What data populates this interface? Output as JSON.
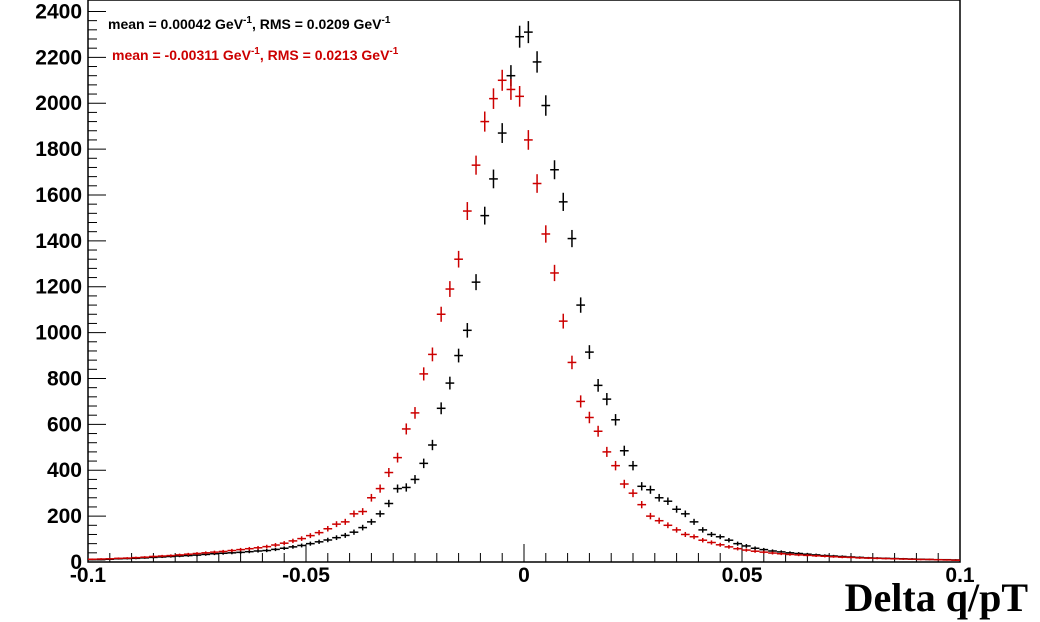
{
  "chart_data": {
    "type": "scatter",
    "title": "",
    "xlabel": "Delta q/pT",
    "ylabel": "",
    "xlim": [
      -0.1,
      0.1
    ],
    "ylim": [
      0,
      2450
    ],
    "grid": false,
    "x_ticks": [
      "-0.1",
      "-0.05",
      "0",
      "0.05",
      "0.1"
    ],
    "y_ticks": [
      "0",
      "200",
      "400",
      "600",
      "800",
      "1000",
      "1200",
      "1400",
      "1600",
      "1800",
      "2000",
      "2200",
      "2400"
    ],
    "annotations": [
      {
        "text_pre": "mean = 0.00042 GeV",
        "sup1": "-1",
        "text_mid": ", RMS = 0.0209 GeV",
        "sup2": "-1",
        "color": "#000000"
      },
      {
        "text_pre": "mean = -0.00311 GeV",
        "sup1": "-1",
        "text_mid": ", RMS = 0.0213 GeV",
        "sup2": "-1",
        "color": "#cc0000"
      }
    ],
    "series": [
      {
        "color": "#000000",
        "x": [
          -0.099,
          -0.097,
          -0.095,
          -0.093,
          -0.091,
          -0.089,
          -0.087,
          -0.085,
          -0.083,
          -0.081,
          -0.079,
          -0.077,
          -0.075,
          -0.073,
          -0.071,
          -0.069,
          -0.067,
          -0.065,
          -0.063,
          -0.061,
          -0.059,
          -0.057,
          -0.055,
          -0.053,
          -0.051,
          -0.049,
          -0.047,
          -0.045,
          -0.043,
          -0.041,
          -0.039,
          -0.037,
          -0.035,
          -0.033,
          -0.031,
          -0.029,
          -0.027,
          -0.025,
          -0.023,
          -0.021,
          -0.019,
          -0.017,
          -0.015,
          -0.013,
          -0.011,
          -0.009,
          -0.007,
          -0.005,
          -0.003,
          -0.001,
          0.001,
          0.003,
          0.005,
          0.007,
          0.009,
          0.011,
          0.013,
          0.015,
          0.017,
          0.019,
          0.021,
          0.023,
          0.025,
          0.027,
          0.029,
          0.031,
          0.033,
          0.035,
          0.037,
          0.039,
          0.041,
          0.043,
          0.045,
          0.047,
          0.049,
          0.051,
          0.053,
          0.055,
          0.057,
          0.059,
          0.061,
          0.063,
          0.065,
          0.067,
          0.069,
          0.071,
          0.073,
          0.075,
          0.077,
          0.079,
          0.081,
          0.083,
          0.085,
          0.087,
          0.089,
          0.091,
          0.093,
          0.095,
          0.097,
          0.099
        ],
        "y": [
          10,
          10,
          12,
          14,
          15,
          16,
          18,
          20,
          22,
          24,
          26,
          28,
          30,
          33,
          36,
          38,
          40,
          42,
          45,
          48,
          50,
          55,
          60,
          66,
          72,
          80,
          88,
          96,
          106,
          116,
          130,
          150,
          175,
          210,
          255,
          320,
          325,
          360,
          430,
          510,
          670,
          780,
          900,
          1010,
          1220,
          1510,
          1670,
          1870,
          2120,
          2290,
          2310,
          2180,
          1990,
          1710,
          1570,
          1410,
          1120,
          915,
          770,
          710,
          620,
          485,
          420,
          330,
          315,
          280,
          265,
          230,
          210,
          175,
          140,
          120,
          110,
          95,
          80,
          70,
          60,
          54,
          48,
          44,
          40,
          37,
          34,
          31,
          28,
          26,
          24,
          22,
          20,
          18,
          17,
          16,
          15,
          14,
          13,
          12,
          11,
          10,
          10,
          9
        ]
      },
      {
        "color": "#cc0000",
        "x": [
          -0.099,
          -0.097,
          -0.095,
          -0.093,
          -0.091,
          -0.089,
          -0.087,
          -0.085,
          -0.083,
          -0.081,
          -0.079,
          -0.077,
          -0.075,
          -0.073,
          -0.071,
          -0.069,
          -0.067,
          -0.065,
          -0.063,
          -0.061,
          -0.059,
          -0.057,
          -0.055,
          -0.053,
          -0.051,
          -0.049,
          -0.047,
          -0.045,
          -0.043,
          -0.041,
          -0.039,
          -0.037,
          -0.035,
          -0.033,
          -0.031,
          -0.029,
          -0.027,
          -0.025,
          -0.023,
          -0.021,
          -0.019,
          -0.017,
          -0.015,
          -0.013,
          -0.011,
          -0.009,
          -0.007,
          -0.005,
          -0.003,
          -0.001,
          0.001,
          0.003,
          0.005,
          0.007,
          0.009,
          0.011,
          0.013,
          0.015,
          0.017,
          0.019,
          0.021,
          0.023,
          0.025,
          0.027,
          0.029,
          0.031,
          0.033,
          0.035,
          0.037,
          0.039,
          0.041,
          0.043,
          0.045,
          0.047,
          0.049,
          0.051,
          0.053,
          0.055,
          0.057,
          0.059,
          0.061,
          0.063,
          0.065,
          0.067,
          0.069,
          0.071,
          0.073,
          0.075,
          0.077,
          0.079,
          0.081,
          0.083,
          0.085,
          0.087,
          0.089,
          0.091,
          0.093,
          0.095,
          0.097,
          0.099
        ],
        "y": [
          12,
          13,
          14,
          16,
          17,
          19,
          21,
          24,
          26,
          28,
          31,
          34,
          37,
          40,
          43,
          46,
          50,
          54,
          58,
          62,
          67,
          74,
          82,
          92,
          102,
          115,
          128,
          145,
          165,
          175,
          210,
          220,
          280,
          320,
          390,
          455,
          580,
          650,
          820,
          905,
          1080,
          1190,
          1320,
          1530,
          1730,
          1920,
          2020,
          2100,
          2060,
          2030,
          1840,
          1650,
          1430,
          1260,
          1050,
          870,
          700,
          630,
          570,
          480,
          420,
          340,
          300,
          250,
          200,
          180,
          160,
          140,
          120,
          110,
          95,
          85,
          75,
          66,
          58,
          52,
          47,
          43,
          39,
          36,
          33,
          31,
          29,
          27,
          25,
          23,
          21,
          20,
          18,
          17,
          16,
          15,
          14,
          13,
          12,
          11,
          11,
          10,
          9,
          8
        ]
      }
    ]
  }
}
